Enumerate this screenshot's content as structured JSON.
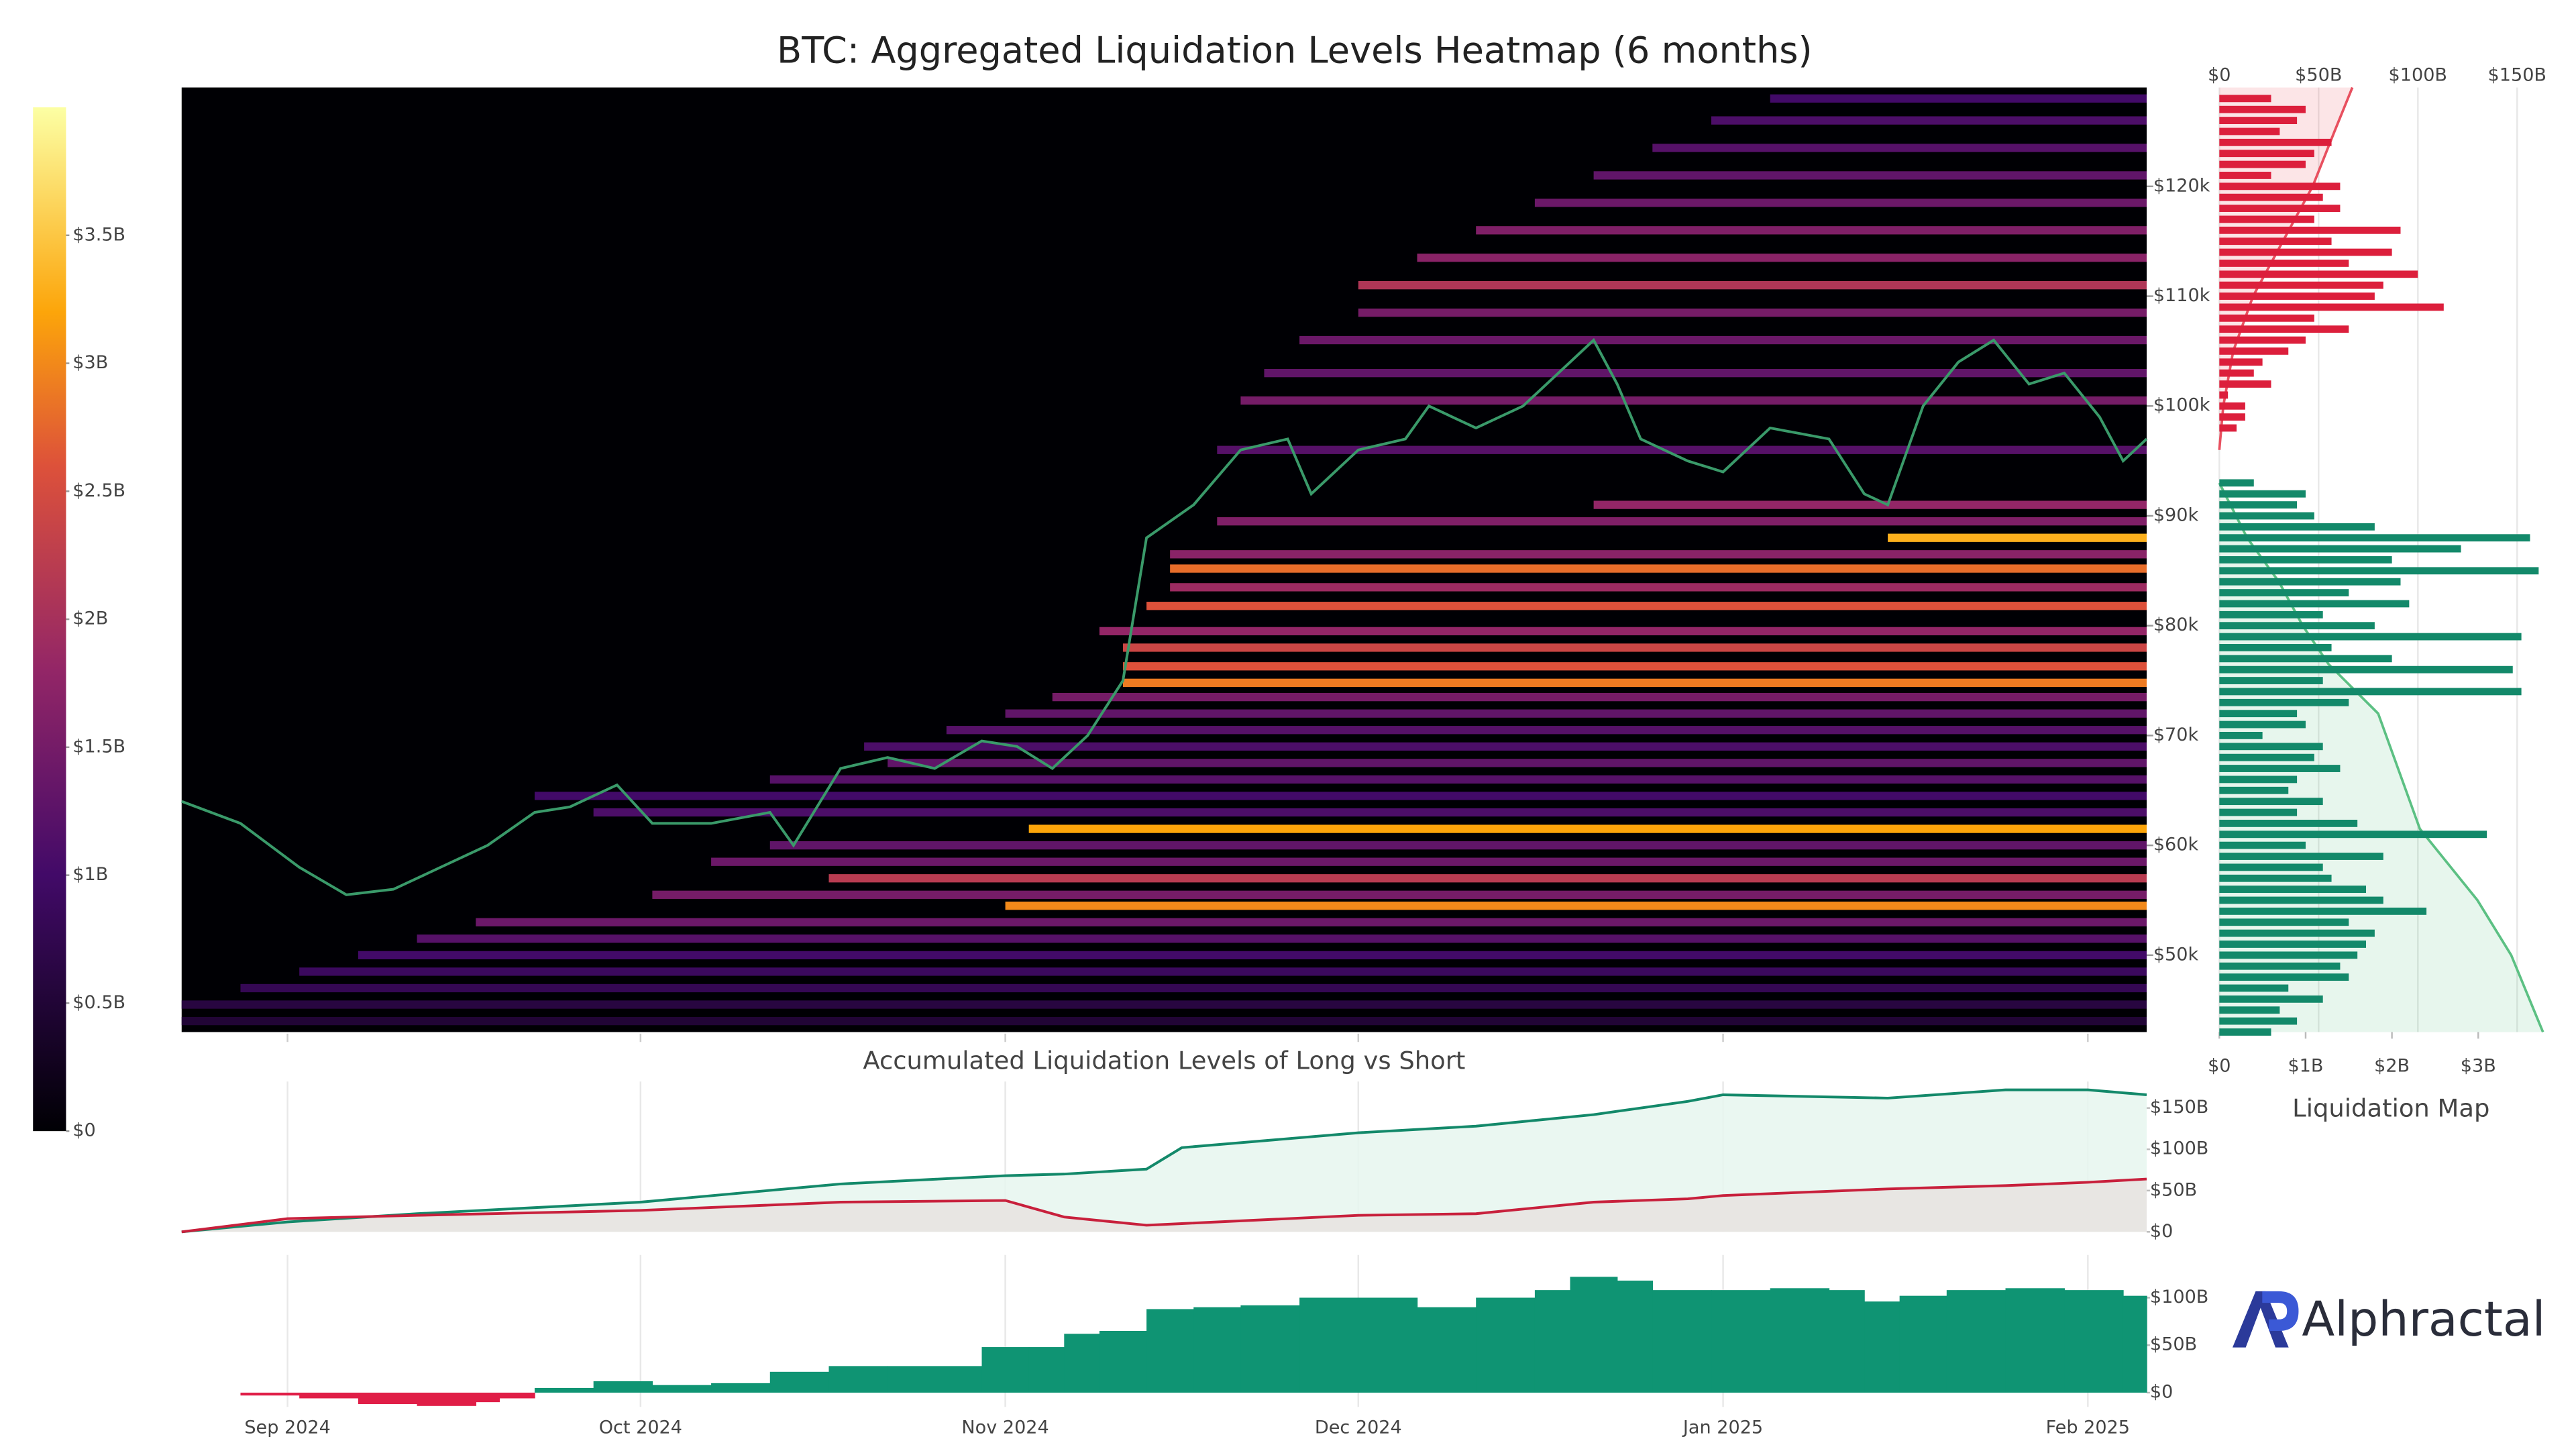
{
  "chart_data": [
    {
      "type": "heatmap",
      "title": "BTC: Aggregated Liquidation Levels Heatmap (6 months)",
      "xlim": [
        0,
        167
      ],
      "ylim": [
        43000,
        129000
      ],
      "yticks": [
        {
          "value": 50000,
          "label": "$50k"
        },
        {
          "value": 60000,
          "label": "$60k"
        },
        {
          "value": 70000,
          "label": "$70k"
        },
        {
          "value": 80000,
          "label": "$80k"
        },
        {
          "value": 90000,
          "label": "$90k"
        },
        {
          "value": 100000,
          "label": "$100k"
        },
        {
          "value": 110000,
          "label": "$110k"
        },
        {
          "value": 120000,
          "label": "$120k"
        }
      ],
      "price": {
        "color": "#3a9a6a",
        "x": [
          0,
          5,
          10,
          14,
          18,
          22,
          26,
          30,
          33,
          37,
          40,
          45,
          50,
          52,
          56,
          60,
          64,
          68,
          71,
          74,
          77,
          80,
          82,
          86,
          90,
          94,
          96,
          100,
          104,
          106,
          110,
          114,
          118,
          120,
          122,
          124,
          128,
          131,
          135,
          140,
          143,
          145,
          148,
          151,
          154,
          157,
          160,
          163,
          165,
          167
        ],
        "values": [
          64000,
          62000,
          58000,
          55500,
          56000,
          58000,
          60000,
          63000,
          63500,
          65500,
          62000,
          62000,
          63000,
          60000,
          67000,
          68000,
          67000,
          69500,
          69000,
          67000,
          70000,
          75000,
          88000,
          91000,
          96000,
          97000,
          92000,
          96000,
          97000,
          100000,
          98000,
          100000,
          104000,
          106000,
          102000,
          97000,
          95000,
          94000,
          98000,
          97000,
          92000,
          91000,
          100000,
          104000,
          106000,
          102000,
          103000,
          99000,
          95000,
          97000
        ]
      },
      "levels": {
        "prices": [
          44000,
          45500,
          47000,
          48500,
          50000,
          51500,
          53000,
          54500,
          55500,
          57000,
          58500,
          60000,
          61500,
          63000,
          64500,
          66000,
          67500,
          69000,
          70500,
          72000,
          73500,
          74800,
          76300,
          78000,
          79500,
          81800,
          83500,
          85200,
          86500,
          88000,
          89500,
          91000,
          96000,
          100500,
          103000,
          106000,
          108500,
          111000,
          113500,
          116000,
          118500,
          121000,
          123500,
          126000,
          128000
        ],
        "starts": [
          0,
          0,
          5,
          10,
          15,
          20,
          25,
          70,
          40,
          55,
          45,
          50,
          72,
          35,
          30,
          50,
          60,
          58,
          65,
          70,
          74,
          80,
          80,
          80,
          78,
          82,
          84,
          84,
          84,
          145,
          88,
          120,
          88,
          90,
          92,
          95,
          100,
          100,
          105,
          110,
          115,
          120,
          125,
          130,
          135
        ],
        "values": [
          0.5,
          0.6,
          0.8,
          0.9,
          1.0,
          1.2,
          1.4,
          3.0,
          1.5,
          2.2,
          1.4,
          1.3,
          3.2,
          1.1,
          1.0,
          1.2,
          1.3,
          1.1,
          1.2,
          1.3,
          1.5,
          2.9,
          2.6,
          2.4,
          1.8,
          2.6,
          1.9,
          2.8,
          1.7,
          3.3,
          1.6,
          1.8,
          1.2,
          1.5,
          1.3,
          1.4,
          1.5,
          2.1,
          1.7,
          1.6,
          1.4,
          1.3,
          1.2,
          1.1,
          1.0
        ]
      },
      "colorbar": {
        "ylim": [
          0,
          4
        ],
        "yticks": [
          {
            "value": 0,
            "label": "$0"
          },
          {
            "value": 0.5,
            "label": "$0.5B"
          },
          {
            "value": 1,
            "label": "$1B"
          },
          {
            "value": 1.5,
            "label": "$1.5B"
          },
          {
            "value": 2,
            "label": "$2B"
          },
          {
            "value": 2.5,
            "label": "$2.5B"
          },
          {
            "value": 3,
            "label": "$3B"
          },
          {
            "value": 3.5,
            "label": "$3.5B"
          }
        ]
      }
    },
    {
      "type": "bar",
      "orientation": "horizontal",
      "title": "Liquidation Map",
      "xlim": [
        0,
        3.75
      ],
      "xticks": [
        {
          "value": 0,
          "label": "$0"
        },
        {
          "value": 1,
          "label": "$1B"
        },
        {
          "value": 2,
          "label": "$2B"
        },
        {
          "value": 3,
          "label": "$3B"
        }
      ],
      "x2lim": [
        0,
        163
      ],
      "x2ticks": [
        {
          "value": 0,
          "label": "$0"
        },
        {
          "value": 50,
          "label": "$50B"
        },
        {
          "value": 100,
          "label": "$100B"
        },
        {
          "value": 150,
          "label": "$150B"
        }
      ],
      "longs": {
        "color": "#13896a",
        "prices": [
          43000,
          44000,
          45000,
          46000,
          47000,
          48000,
          49000,
          50000,
          51000,
          52000,
          53000,
          54000,
          55000,
          56000,
          57000,
          58000,
          59000,
          60000,
          61000,
          62000,
          63000,
          64000,
          65000,
          66000,
          67000,
          68000,
          69000,
          70000,
          71000,
          72000,
          73000,
          74000,
          75000,
          76000,
          77000,
          78000,
          79000,
          80000,
          81000,
          82000,
          83000,
          84000,
          85000,
          86000,
          87000,
          88000,
          89000,
          90000,
          91000,
          92000,
          93000
        ],
        "values": [
          0.6,
          0.9,
          0.7,
          1.2,
          0.8,
          1.5,
          1.4,
          1.6,
          1.7,
          1.8,
          1.5,
          2.4,
          1.9,
          1.7,
          1.3,
          1.2,
          1.9,
          1.0,
          3.1,
          1.6,
          0.9,
          1.2,
          0.8,
          0.9,
          1.4,
          1.1,
          1.2,
          0.5,
          1.0,
          0.9,
          1.5,
          3.5,
          1.2,
          3.4,
          2.0,
          1.3,
          3.5,
          1.8,
          1.2,
          2.2,
          1.5,
          2.1,
          3.7,
          2.0,
          2.8,
          3.6,
          1.8,
          1.1,
          0.9,
          1.0,
          0.4
        ]
      },
      "shorts": {
        "color": "#dc1f3c",
        "prices": [
          94000,
          95000,
          96000,
          97000,
          98000,
          99000,
          100000,
          101000,
          102000,
          103000,
          104000,
          105000,
          106000,
          107000,
          108000,
          109000,
          110000,
          111000,
          112000,
          113000,
          114000,
          115000,
          116000,
          117000,
          118000,
          119000,
          120000,
          121000,
          122000,
          123000,
          124000,
          125000,
          126000,
          127000,
          128000
        ],
        "values": [
          0,
          0,
          0,
          0,
          0.2,
          0.3,
          0.3,
          0.1,
          0.6,
          0.4,
          0.5,
          0.8,
          1.0,
          1.5,
          1.1,
          2.6,
          1.8,
          1.9,
          2.3,
          1.5,
          2.0,
          1.3,
          2.1,
          1.1,
          1.4,
          1.2,
          1.4,
          0.6,
          1.0,
          1.1,
          1.3,
          0.7,
          0.9,
          1.0,
          0.6
        ]
      },
      "cumulative_shorts": {
        "color": "#e8505f",
        "prices": [
          96000,
          100000,
          105000,
          110000,
          115000,
          120000,
          125000,
          129000
        ],
        "values": [
          0,
          2,
          7,
          17,
          32,
          47,
          58,
          67
        ]
      },
      "cumulative_longs": {
        "color": "#5cc083",
        "prices": [
          93000,
          88000,
          84000,
          80000,
          76500,
          72000,
          66000,
          61500,
          55000,
          50000,
          43000
        ],
        "values": [
          0,
          14,
          30,
          42,
          55,
          80,
          92,
          101,
          130,
          147,
          163
        ]
      }
    },
    {
      "type": "area",
      "title": "Accumulated Liquidation Levels of Long vs Short",
      "xlim": [
        0,
        167
      ],
      "ylim": [
        0,
        182
      ],
      "yticks": [
        {
          "value": 0,
          "label": "$0"
        },
        {
          "value": 50,
          "label": "$50B"
        },
        {
          "value": 100,
          "label": "$100B"
        },
        {
          "value": 150,
          "label": "$150B"
        }
      ],
      "x": [
        0,
        9,
        20,
        39,
        56,
        70,
        75,
        82,
        85,
        100,
        110,
        120,
        128,
        131,
        145,
        155,
        162,
        167
      ],
      "series": [
        {
          "color": "#13896a",
          "fill": "#e6f6ef",
          "values": [
            0,
            12,
            22,
            36,
            58,
            68,
            70,
            76,
            102,
            120,
            128,
            142,
            158,
            166,
            162,
            172,
            172,
            166
          ]
        },
        {
          "color": "#c8203c",
          "fill": "#e7e3e1",
          "values": [
            0,
            16,
            20,
            26,
            36,
            38,
            18,
            8,
            10,
            20,
            22,
            36,
            40,
            44,
            52,
            56,
            60,
            64
          ]
        }
      ]
    },
    {
      "type": "bar",
      "xlim": [
        0,
        167
      ],
      "ylim": [
        -15,
        145
      ],
      "yticks": [
        {
          "value": 0,
          "label": "$0"
        },
        {
          "value": 50,
          "label": "$50B"
        },
        {
          "value": 100,
          "label": "$100B"
        }
      ],
      "xticks": [
        {
          "value": 9,
          "label": "Sep 2024"
        },
        {
          "value": 39,
          "label": "Oct 2024"
        },
        {
          "value": 70,
          "label": "Nov 2024"
        },
        {
          "value": 100,
          "label": "Dec 2024"
        },
        {
          "value": 131,
          "label": "Jan 2025"
        },
        {
          "value": 162,
          "label": "Feb 2025"
        }
      ],
      "x": [
        0,
        5,
        10,
        15,
        20,
        25,
        27,
        30,
        35,
        40,
        45,
        50,
        55,
        60,
        68,
        72,
        75,
        78,
        82,
        86,
        90,
        95,
        100,
        105,
        110,
        115,
        118,
        122,
        125,
        130,
        135,
        140,
        143,
        146,
        150,
        155,
        160,
        165
      ],
      "values": [
        0,
        -3,
        -6,
        -12,
        -14,
        -10,
        -6,
        5,
        12,
        8,
        10,
        22,
        28,
        28,
        48,
        48,
        62,
        65,
        88,
        90,
        92,
        100,
        100,
        90,
        100,
        108,
        122,
        118,
        108,
        108,
        110,
        108,
        96,
        102,
        108,
        110,
        108,
        102
      ],
      "positive_color": "#0f9473",
      "negative_color": "#e01e47"
    }
  ],
  "logo": {
    "text": "Alphractal"
  }
}
